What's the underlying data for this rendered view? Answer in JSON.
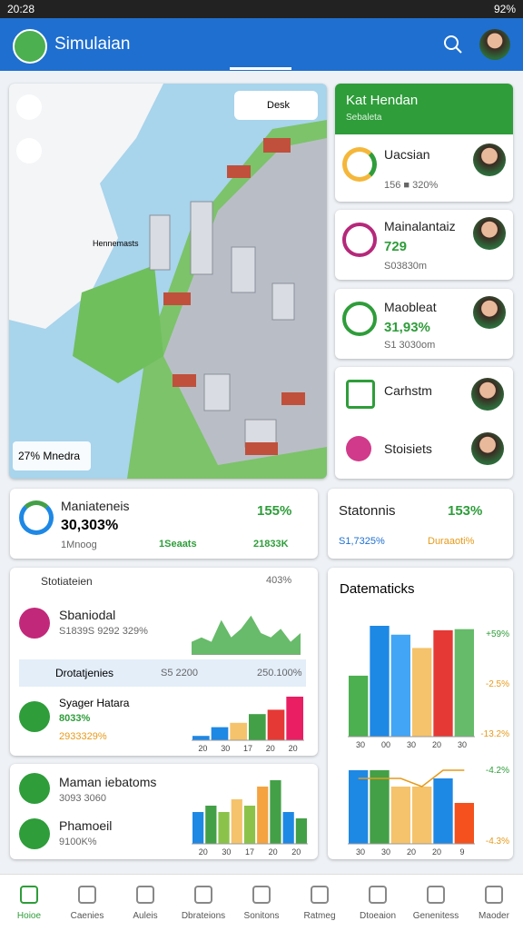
{
  "status_bar": {
    "time": "20:28",
    "battery": "92%"
  },
  "app_bar": {
    "title": "Simulaian"
  },
  "map": {
    "search": "Desk",
    "label": "Hennemasts",
    "badge": "27% Mnedra"
  },
  "side_panel": {
    "title": "Kat Hendan",
    "subtitle": "Sebaleta",
    "items": [
      {
        "title": "Uacsian",
        "detail": "156 ■ 320%"
      },
      {
        "title": "Mainalantaiz",
        "value": "729",
        "detail": "S03830m"
      },
      {
        "title": "Maobleat",
        "value": "31,93%",
        "detail": "S1 3030om"
      },
      {
        "title": "Carhstm"
      },
      {
        "title": "Stoisiets"
      }
    ]
  },
  "summary": [
    {
      "title": "Maniateneis",
      "value": "30,303%",
      "sub": "1Mnoog",
      "change": "155%",
      "tag1": "1Seaats",
      "tag2": "21833K"
    },
    {
      "title": "Statonnis",
      "change": "153%",
      "left": "S1,7325%",
      "right": "Duraaoti%"
    }
  ],
  "list_card": {
    "title": "Stotiateien",
    "value": "403%",
    "rows": [
      {
        "title": "Sbaniodal",
        "detail": "S1839S 9292 329%"
      },
      {
        "title": "Drotatjenies",
        "mid": "S5 2200",
        "right": "250.100%"
      },
      {
        "title": "Syager Hatara",
        "value": "8033%",
        "detail": "2933329%"
      }
    ]
  },
  "lower_card": {
    "rows": [
      {
        "title": "Maman iebatoms",
        "detail": "3093 3060"
      },
      {
        "title": "Phamoeil",
        "detail": "9100K%"
      }
    ]
  },
  "charts": {
    "area1": {
      "type": "area",
      "values": [
        3,
        4,
        3,
        8,
        4,
        6,
        9,
        5,
        4,
        6,
        3,
        5
      ],
      "ylim": [
        0,
        10
      ],
      "colors": [
        "#4caf50",
        "#8bc34a",
        "#f4a340"
      ]
    },
    "bars1": {
      "type": "bar",
      "values": [
        1,
        3,
        4,
        6,
        7,
        10
      ],
      "ylim": [
        0,
        10
      ],
      "colors": [
        "#1e88e5",
        "#1e88e5",
        "#f5c36b",
        "#43a047",
        "#e53935",
        "#e91e63"
      ],
      "xlabels": [
        "20",
        "30",
        "17",
        "20",
        "20"
      ]
    },
    "bars2": {
      "type": "bar",
      "values": [
        5,
        6,
        5,
        7,
        6,
        9,
        10,
        5,
        4
      ],
      "ylim": [
        0,
        10
      ],
      "colors": [
        "#1e88e5",
        "#43a047",
        "#8bc34a",
        "#f5c36b",
        "#8bc34a",
        "#f4a340",
        "#43a047",
        "#1e88e5",
        "#43a047"
      ],
      "xlabels": [
        "20",
        "30",
        "17",
        "20",
        "20"
      ]
    },
    "main": {
      "title": "Datematicks",
      "type": "bar",
      "values": [
        5.5,
        10,
        9.2,
        8,
        9.6,
        9.7
      ],
      "ylim": [
        0,
        10
      ],
      "colors": [
        "#4caf50",
        "#1e88e5",
        "#42a5f5",
        "#f5c36b",
        "#e53935",
        "#66bb6a"
      ],
      "xlabels": [
        "30",
        "00",
        "30",
        "20",
        "30"
      ],
      "right_labels": [
        "+59%",
        "-2.5%",
        "-13.2%"
      ]
    },
    "lower": {
      "type": "bar",
      "values": [
        9,
        9,
        7,
        7,
        8,
        5
      ],
      "line": [
        8,
        8,
        8,
        7,
        9,
        9
      ],
      "ylim": [
        0,
        10
      ],
      "colors": [
        "#1e88e5",
        "#43a047",
        "#f5c36b",
        "#f5c36b",
        "#1e88e5",
        "#f4511e"
      ],
      "xlabels": [
        "30",
        "30",
        "20",
        "20",
        "9"
      ],
      "right_labels": [
        "-4.2%",
        "-4.3%"
      ]
    }
  },
  "nav": [
    "Hoioe",
    "Caenies",
    "Auleis",
    "Dbrateions",
    "Sonitons",
    "Ratmeg",
    "Dtoeaion",
    "Genenitess",
    "Maoder"
  ]
}
